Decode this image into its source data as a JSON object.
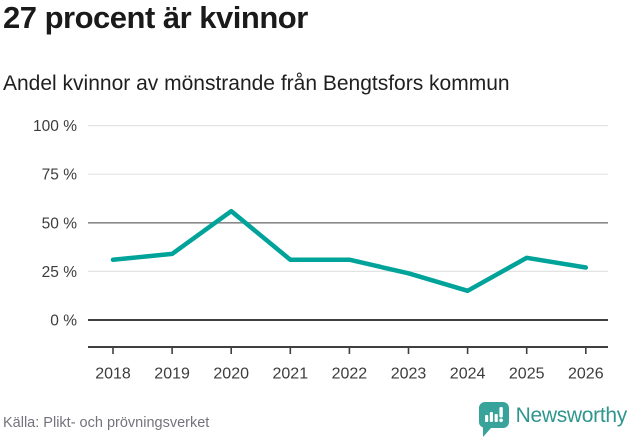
{
  "header": {
    "title": "27 procent är kvinnor",
    "subtitle": "Andel kvinnor av mönstrande från Bengtsfors kommun"
  },
  "chart_data": {
    "type": "line",
    "title": "27 procent är kvinnor",
    "subtitle": "Andel kvinnor av mönstrande från Bengtsfors kommun",
    "categories": [
      "2018",
      "2019",
      "2020",
      "2021",
      "2022",
      "2023",
      "2024",
      "2025",
      "2026"
    ],
    "series": [
      {
        "name": "Andel kvinnor av mönstrande",
        "values": [
          31,
          34,
          56,
          31,
          31,
          24,
          15,
          32,
          27
        ]
      }
    ],
    "unit": "%",
    "ylim": [
      0,
      100
    ],
    "yticks": [
      0,
      25,
      50,
      75,
      100
    ],
    "ytick_suffix": " %",
    "grid": true,
    "emphasized_gridlines": [
      0,
      50
    ],
    "legend": "none",
    "line_color": "#00a39a"
  },
  "footer": {
    "source": "Källa: Plikt- och prövningsverket",
    "brand": "Newsworthy"
  },
  "colors": {
    "accent_teal": "#00a39a",
    "brand_text_teal": "#2f968e",
    "logo_bubble_teal": "#38a39b",
    "grid_light": "#e3e3e3",
    "grid_mid": "#8a8a8a",
    "axis_dark": "#404040",
    "tick_text": "#3c3c3c",
    "title_text": "#1a1a1a",
    "muted_text": "#73737c"
  }
}
